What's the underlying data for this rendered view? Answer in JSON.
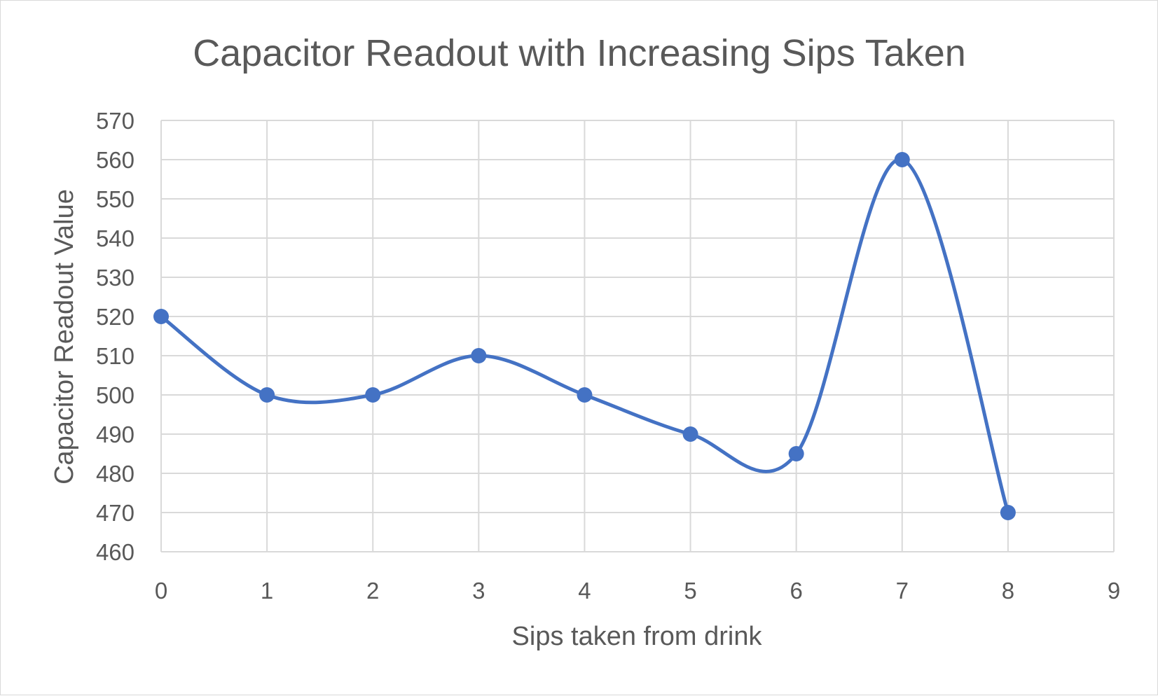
{
  "chart_data": {
    "type": "scatter",
    "title": "Capacitor Readout with Increasing Sips Taken",
    "xlabel": "Sips taken from drink",
    "ylabel": "Capacitor Readout Value",
    "xlim": [
      0,
      9
    ],
    "ylim": [
      460,
      570
    ],
    "x_ticks": [
      0,
      1,
      2,
      3,
      4,
      5,
      6,
      7,
      8,
      9
    ],
    "y_ticks": [
      460,
      470,
      480,
      490,
      500,
      510,
      520,
      530,
      540,
      550,
      560,
      570
    ],
    "grid": true,
    "smooth_line": true,
    "markers": true,
    "legend": "none",
    "series": [
      {
        "x": [
          0,
          1,
          2,
          3,
          4,
          5,
          6,
          7,
          8
        ],
        "y": [
          520,
          500,
          500,
          510,
          500,
          490,
          485,
          560,
          470
        ],
        "color": "#4472c4"
      }
    ]
  }
}
